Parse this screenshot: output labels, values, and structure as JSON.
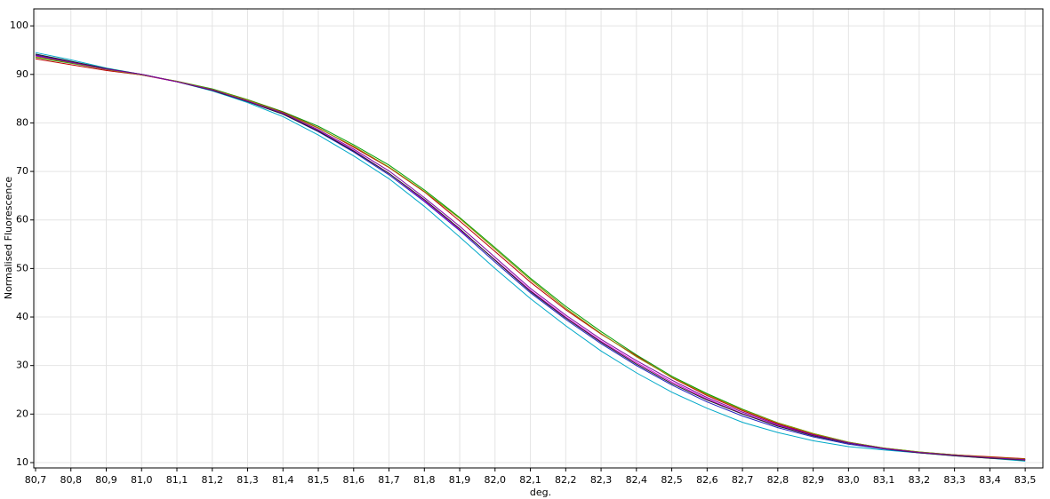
{
  "chart_data": {
    "type": "line",
    "x_label": "deg.",
    "y_label": "Normalised Fluorescence",
    "x": [
      80.7,
      80.8,
      80.9,
      81.0,
      81.1,
      81.2,
      81.3,
      81.4,
      81.5,
      81.6,
      81.7,
      81.8,
      81.9,
      82.0,
      82.1,
      82.2,
      82.3,
      82.4,
      82.5,
      82.6,
      82.7,
      82.8,
      82.9,
      83.0,
      83.1,
      83.2,
      83.3,
      83.4,
      83.5
    ],
    "xlim": [
      80.695,
      83.55
    ],
    "ylim": [
      8.9,
      103.5
    ],
    "grid": true,
    "xticks": [
      {
        "value": 80.7,
        "label": "80,7"
      },
      {
        "value": 80.8,
        "label": "80,8"
      },
      {
        "value": 80.9,
        "label": "80,9"
      },
      {
        "value": 81.0,
        "label": "81,0"
      },
      {
        "value": 81.1,
        "label": "81,1"
      },
      {
        "value": 81.2,
        "label": "81,2"
      },
      {
        "value": 81.3,
        "label": "81,3"
      },
      {
        "value": 81.4,
        "label": "81,4"
      },
      {
        "value": 81.5,
        "label": "81,5"
      },
      {
        "value": 81.6,
        "label": "81,6"
      },
      {
        "value": 81.7,
        "label": "81,7"
      },
      {
        "value": 81.8,
        "label": "81,8"
      },
      {
        "value": 81.9,
        "label": "81,9"
      },
      {
        "value": 82.0,
        "label": "82,0"
      },
      {
        "value": 82.1,
        "label": "82,1"
      },
      {
        "value": 82.2,
        "label": "82,2"
      },
      {
        "value": 82.3,
        "label": "82,3"
      },
      {
        "value": 82.4,
        "label": "82,4"
      },
      {
        "value": 82.5,
        "label": "82,5"
      },
      {
        "value": 82.6,
        "label": "82,6"
      },
      {
        "value": 82.7,
        "label": "82,7"
      },
      {
        "value": 82.8,
        "label": "82,8"
      },
      {
        "value": 82.9,
        "label": "82,9"
      },
      {
        "value": 83.0,
        "label": "83,0"
      },
      {
        "value": 83.1,
        "label": "83,1"
      },
      {
        "value": 83.2,
        "label": "83,2"
      },
      {
        "value": 83.3,
        "label": "83,3"
      },
      {
        "value": 83.4,
        "label": "83,4"
      },
      {
        "value": 83.5,
        "label": "83,5"
      }
    ],
    "yticks": [
      10,
      20,
      30,
      40,
      50,
      60,
      70,
      80,
      90,
      100
    ],
    "series": [
      {
        "color": "#00a8c8",
        "values": [
          94.5,
          93,
          91.3,
          90,
          88.5,
          86.6,
          84.2,
          81.3,
          77.5,
          73.2,
          68.5,
          62.8,
          56.5,
          50,
          43.8,
          38.2,
          33,
          28.5,
          24.5,
          21.2,
          18.3,
          16.2,
          14.5,
          13.3,
          12.6,
          12,
          11.4,
          10.9,
          10.3
        ]
      },
      {
        "color": "#00a000",
        "values": [
          93.5,
          92.3,
          91,
          89.9,
          88.6,
          87,
          84.8,
          82.3,
          79.3,
          75.5,
          71.3,
          66.2,
          60.5,
          54.3,
          48,
          42.2,
          37,
          32.2,
          27.8,
          24.2,
          21,
          18.2,
          16,
          14.2,
          13,
          12.2,
          11.6,
          11.1,
          10.6
        ]
      },
      {
        "color": "#c00000",
        "values": [
          93.2,
          92,
          90.8,
          89.9,
          88.5,
          86.9,
          84.7,
          82.2,
          79,
          75,
          70.8,
          65.8,
          59.8,
          53.5,
          47.2,
          41.5,
          36.5,
          32,
          27.5,
          23.8,
          20.7,
          18,
          15.8,
          14.1,
          12.9,
          12.1,
          11.6,
          11.2,
          10.8
        ]
      },
      {
        "color": "#2020c0",
        "values": [
          94,
          92.6,
          91.1,
          90,
          88.5,
          86.7,
          84.4,
          81.8,
          78.2,
          74,
          69.3,
          63.8,
          57.8,
          51.3,
          45,
          39.5,
          34.5,
          30,
          26,
          22.5,
          19.6,
          17.2,
          15.3,
          13.8,
          12.8,
          12,
          11.5,
          11,
          10.6
        ]
      },
      {
        "color": "#d000d0",
        "values": [
          93.8,
          92.4,
          91,
          89.9,
          88.5,
          86.8,
          84.5,
          81.9,
          78.4,
          74.3,
          69.6,
          64,
          58,
          51.8,
          45.5,
          40,
          35,
          30.6,
          26.6,
          23.1,
          20.1,
          17.6,
          15.6,
          14,
          12.9,
          12.1,
          11.5,
          11,
          10.5
        ]
      },
      {
        "color": "#202020",
        "values": [
          94.2,
          92.7,
          91.2,
          90,
          88.5,
          86.7,
          84.4,
          81.8,
          78.3,
          74.2,
          69.6,
          64.2,
          58.2,
          51.7,
          45.3,
          39.8,
          34.8,
          30.3,
          26.3,
          22.9,
          20,
          17.5,
          15.5,
          14,
          12.9,
          12,
          11.4,
          10.9,
          10.5
        ]
      },
      {
        "color": "#909000",
        "values": [
          93.6,
          92.4,
          91,
          89.9,
          88.6,
          86.9,
          84.7,
          82.1,
          78.9,
          75.2,
          70.9,
          65.9,
          60.3,
          54,
          47.7,
          41.8,
          36.6,
          31.8,
          27.6,
          24,
          20.9,
          18.2,
          16,
          14.2,
          13,
          12.2,
          11.6,
          11.1,
          10.7
        ]
      },
      {
        "color": "#8000a0",
        "values": [
          93.9,
          92.5,
          91.1,
          90,
          88.5,
          86.8,
          84.5,
          82,
          78.6,
          74.6,
          70.1,
          64.6,
          58.7,
          52.3,
          45.9,
          40.4,
          35.4,
          31,
          27,
          23.4,
          20.4,
          17.8,
          15.7,
          14.1,
          12.9,
          12.1,
          11.5,
          11,
          10.6
        ]
      }
    ]
  }
}
